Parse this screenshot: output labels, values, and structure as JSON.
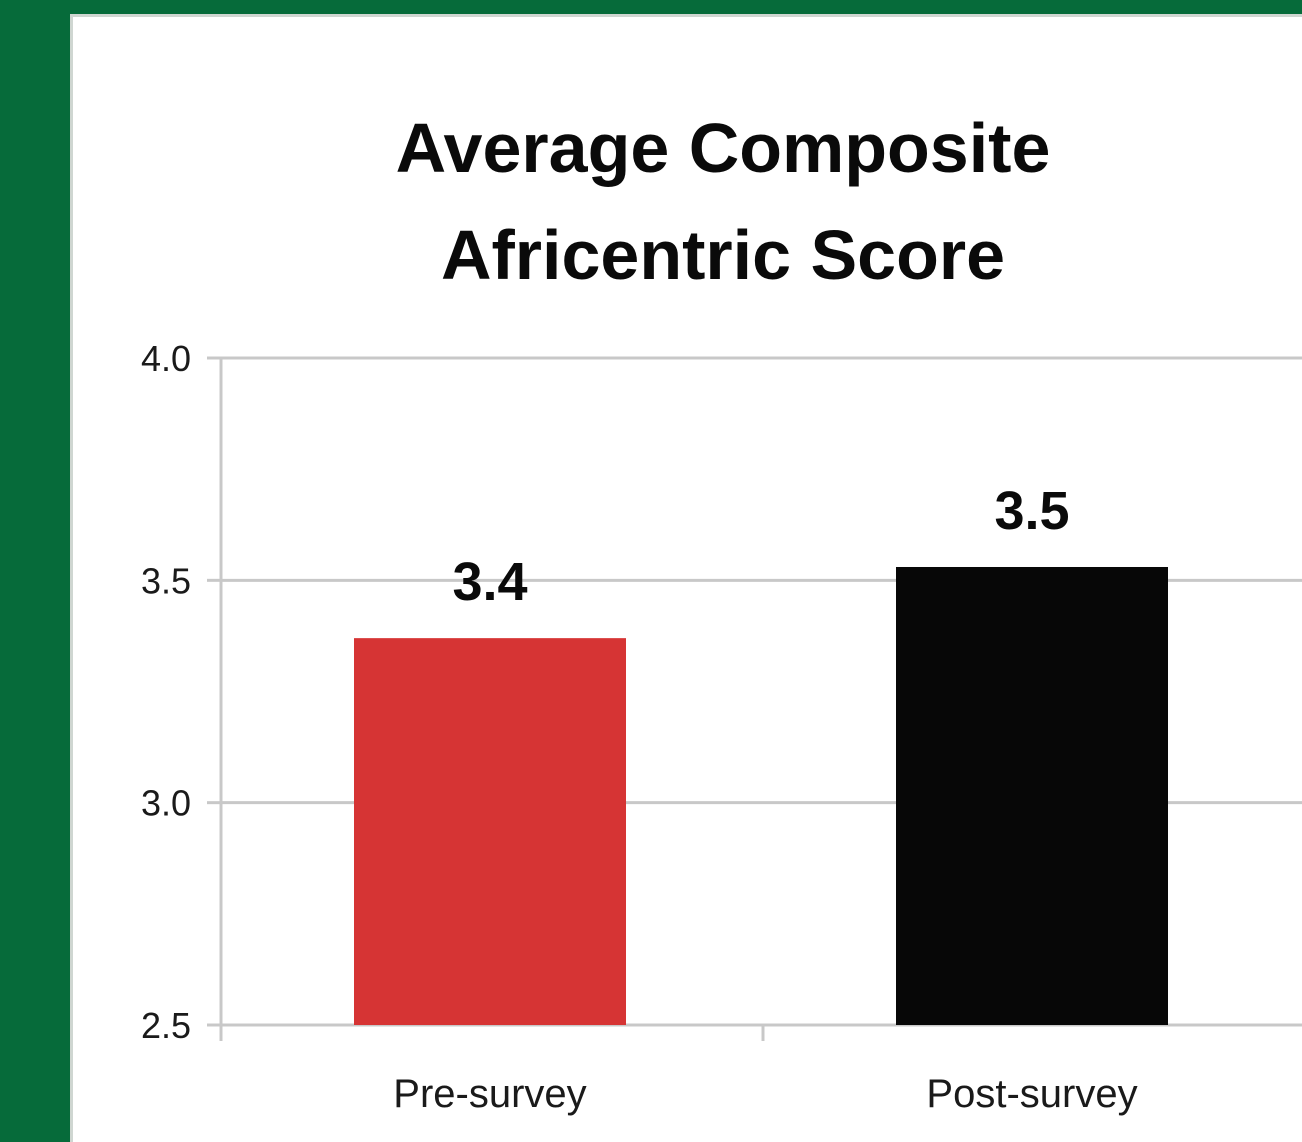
{
  "chart_data": {
    "type": "bar",
    "title_lines": [
      "Average Composite",
      "Africentric Score"
    ],
    "categories": [
      "Pre-survey",
      "Post-survey"
    ],
    "values": [
      3.4,
      3.5
    ],
    "bar_heights": [
      3.37,
      3.53
    ],
    "data_labels": [
      "3.4",
      "3.5"
    ],
    "bar_colors": [
      "#d63434",
      "#070707"
    ],
    "ylim": [
      2.5,
      4.0
    ],
    "yticks": [
      2.5,
      3.0,
      3.5,
      4.0
    ],
    "ytick_labels": [
      "2.5",
      "3.0",
      "3.5",
      "4.0"
    ],
    "xlabel": "",
    "ylabel": "",
    "grid": true,
    "legend": "none"
  },
  "colors": {
    "frame": "#066b3a",
    "panel": "#ffffff",
    "gridline": "#c8c8c8"
  }
}
